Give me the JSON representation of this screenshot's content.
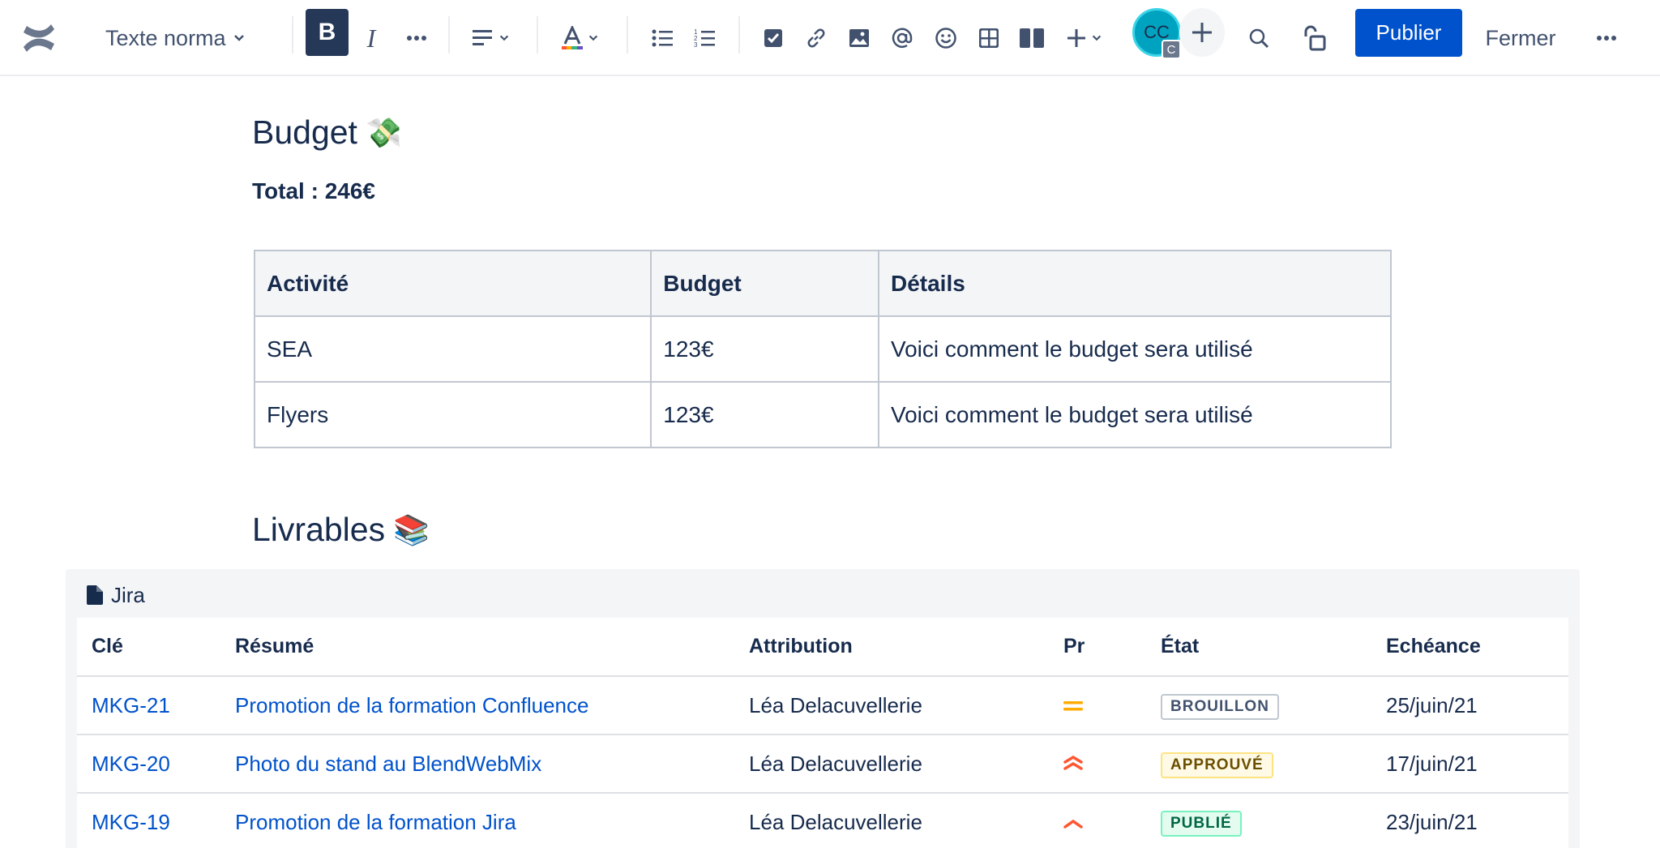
{
  "toolbar": {
    "text_style": "Texte norma",
    "bold_label": "B",
    "italic_label": "I",
    "avatar_initials": "CC",
    "avatar_badge": "C",
    "publish_label": "Publier",
    "close_label": "Fermer"
  },
  "budget": {
    "heading": "Budget",
    "heading_emoji": "💸",
    "total": "Total : 246€",
    "columns": [
      "Activité",
      "Budget",
      "Détails"
    ],
    "rows": [
      {
        "activity": "SEA",
        "budget": "123€",
        "details": "Voici comment le budget sera utilisé"
      },
      {
        "activity": "Flyers",
        "budget": "123€",
        "details": "Voici comment le budget sera utilisé"
      }
    ]
  },
  "livrables": {
    "heading": "Livrables",
    "heading_emoji": "📚",
    "jira_title": "Jira",
    "columns": [
      "Clé",
      "Résumé",
      "Attribution",
      "Pr",
      "État",
      "Echéance"
    ],
    "issues": [
      {
        "key": "MKG-21",
        "summary": "Promotion de la formation Confluence",
        "assignee": "Léa Delacuvellerie",
        "priority": "medium",
        "status": "BROUILLON",
        "status_color": "#42526e",
        "status_border": "#c1c7d0",
        "status_bg": "#ffffff",
        "due": "25/juin/21"
      },
      {
        "key": "MKG-20",
        "summary": "Photo du stand au BlendWebMix",
        "assignee": "Léa Delacuvellerie",
        "priority": "highest",
        "status": "APPROUVÉ",
        "status_color": "#6b4e00",
        "status_border": "#ffe380",
        "status_bg": "#fffae6",
        "due": "17/juin/21"
      },
      {
        "key": "MKG-19",
        "summary": "Promotion de la formation Jira",
        "assignee": "Léa Delacuvellerie",
        "priority": "high",
        "status": "PUBLIÉ",
        "status_color": "#006644",
        "status_border": "#79f2c0",
        "status_bg": "#e3fcef",
        "due": "23/juin/21"
      }
    ]
  }
}
